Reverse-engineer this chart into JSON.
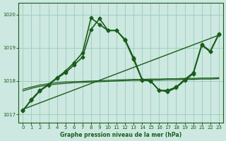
{
  "title": "Graphe pression niveau de la mer (hPa)",
  "bg_color": "#cce8e0",
  "grid_color": "#99ccbb",
  "line_color": "#1a5c1a",
  "xlim": [
    -0.5,
    23.5
  ],
  "ylim": [
    1016.75,
    1020.35
  ],
  "yticks": [
    1017,
    1018,
    1019,
    1020
  ],
  "xticks": [
    0,
    1,
    2,
    3,
    4,
    5,
    6,
    7,
    8,
    9,
    10,
    11,
    12,
    13,
    14,
    15,
    16,
    17,
    18,
    19,
    20,
    21,
    22,
    23
  ],
  "series": [
    {
      "x": [
        0,
        23
      ],
      "y": [
        1017.15,
        1019.38
      ],
      "marker": false,
      "linewidth": 1.0
    },
    {
      "x": [
        0,
        1,
        2,
        3,
        4,
        5,
        6,
        7,
        8,
        9,
        10,
        11,
        12,
        13,
        14,
        15,
        16,
        17,
        18,
        19,
        20,
        21,
        22,
        23
      ],
      "y": [
        1017.75,
        1017.82,
        1017.88,
        1017.92,
        1017.95,
        1017.97,
        1017.98,
        1017.99,
        1018.0,
        1018.01,
        1018.02,
        1018.03,
        1018.04,
        1018.05,
        1018.05,
        1018.06,
        1018.06,
        1018.07,
        1018.07,
        1018.08,
        1018.08,
        1018.09,
        1018.09,
        1018.1
      ],
      "marker": false,
      "linewidth": 0.9
    },
    {
      "x": [
        0,
        1,
        2,
        3,
        4,
        5,
        6,
        7,
        8,
        9,
        10,
        11,
        12,
        13,
        14,
        15,
        16,
        17,
        18,
        19,
        20,
        21,
        22,
        23
      ],
      "y": [
        1017.7,
        1017.78,
        1017.84,
        1017.88,
        1017.91,
        1017.93,
        1017.95,
        1017.96,
        1017.97,
        1017.98,
        1017.99,
        1018.0,
        1018.01,
        1018.02,
        1018.02,
        1018.03,
        1018.03,
        1018.04,
        1018.04,
        1018.05,
        1018.05,
        1018.06,
        1018.06,
        1018.07
      ],
      "marker": false,
      "linewidth": 0.9
    },
    {
      "x": [
        0,
        1,
        2,
        3,
        4,
        5,
        6,
        7,
        8,
        9,
        10,
        11,
        12,
        13,
        14,
        15,
        16,
        17,
        18,
        19,
        20,
        21,
        22,
        23
      ],
      "y": [
        1017.1,
        1017.45,
        1017.72,
        1017.9,
        1018.1,
        1018.3,
        1018.55,
        1018.85,
        1019.9,
        1019.7,
        1019.52,
        1019.52,
        1019.25,
        1018.7,
        1018.05,
        1018.0,
        1017.72,
        1017.72,
        1017.82,
        1018.05,
        1018.25,
        1019.1,
        1018.9,
        1019.42
      ],
      "marker": true,
      "linewidth": 1.2,
      "markersize": 2.5
    },
    {
      "x": [
        0,
        1,
        2,
        3,
        4,
        5,
        6,
        7,
        8,
        9,
        10,
        11,
        12,
        13,
        14,
        15,
        16,
        17,
        18,
        19,
        20,
        21,
        22,
        23
      ],
      "y": [
        1017.12,
        1017.42,
        1017.7,
        1017.88,
        1018.08,
        1018.25,
        1018.48,
        1018.72,
        1019.55,
        1019.88,
        1019.52,
        1019.52,
        1019.22,
        1018.65,
        1018.03,
        1018.0,
        1017.72,
        1017.68,
        1017.8,
        1018.02,
        1018.22,
        1019.08,
        1018.88,
        1019.4
      ],
      "marker": true,
      "linewidth": 1.2,
      "markersize": 2.5
    }
  ]
}
